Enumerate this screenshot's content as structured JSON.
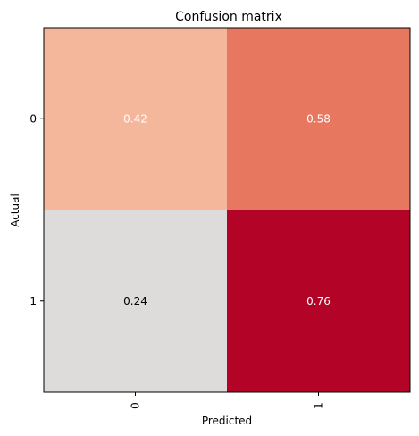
{
  "chart_data": {
    "type": "heatmap",
    "title": "Confusion matrix",
    "xlabel": "Predicted",
    "ylabel": "Actual",
    "x_categories": [
      "0",
      "1"
    ],
    "y_categories": [
      "0",
      "1"
    ],
    "values": [
      [
        0.42,
        0.58
      ],
      [
        0.24,
        0.76
      ]
    ],
    "value_labels": [
      [
        "0.42",
        "0.58"
      ],
      [
        "0.24",
        "0.76"
      ]
    ],
    "cell_colors": [
      [
        "#f4b79b",
        "#e7775f"
      ],
      [
        "#dddcdb",
        "#b30326"
      ]
    ],
    "label_colors": [
      [
        "#ffffff",
        "#ffffff"
      ],
      [
        "#000000",
        "#ffffff"
      ]
    ],
    "x_tick_rotation": "vertical",
    "colormap": "coolwarm",
    "grid": false,
    "legend": "none"
  }
}
